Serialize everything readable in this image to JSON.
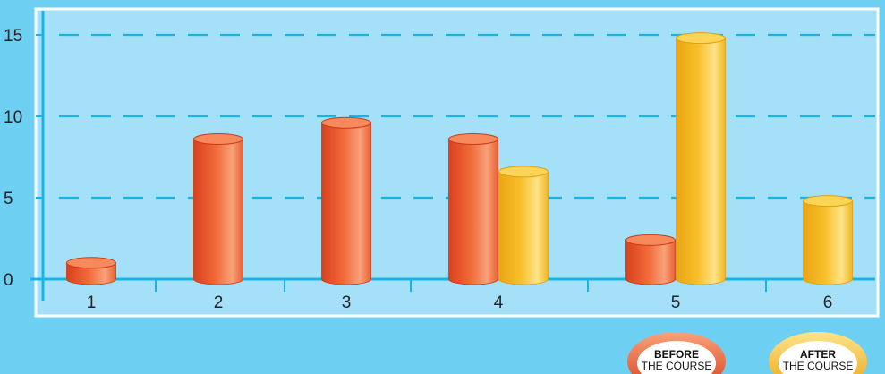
{
  "colors": {
    "background": "#6dd0f3",
    "plot_background": "#a4e1f9",
    "grid": "#19b4e6",
    "axis": "#19b4e6",
    "before": "#f26a3a",
    "after": "#f8c02a"
  },
  "chart_data": {
    "type": "bar",
    "style": "3d-cylinder",
    "categories": [
      "1",
      "2",
      "3",
      "4",
      "5",
      "6"
    ],
    "series": [
      {
        "key": "before",
        "values": [
          1,
          8.6,
          9.6,
          8.6,
          2.4,
          0
        ]
      },
      {
        "key": "after",
        "values": [
          0,
          0,
          0,
          6.6,
          14.8,
          4.8
        ]
      }
    ],
    "ylim": [
      0,
      16
    ],
    "yticks": [
      0,
      5,
      10,
      15
    ],
    "grid": "horizontal dashed",
    "legend_position": "bottom-right"
  },
  "legend": [
    {
      "key": "before",
      "title": "BEFORE",
      "subtitle": "THE COURSE"
    },
    {
      "key": "after",
      "title": "AFTER",
      "subtitle": "THE COURSE"
    }
  ]
}
